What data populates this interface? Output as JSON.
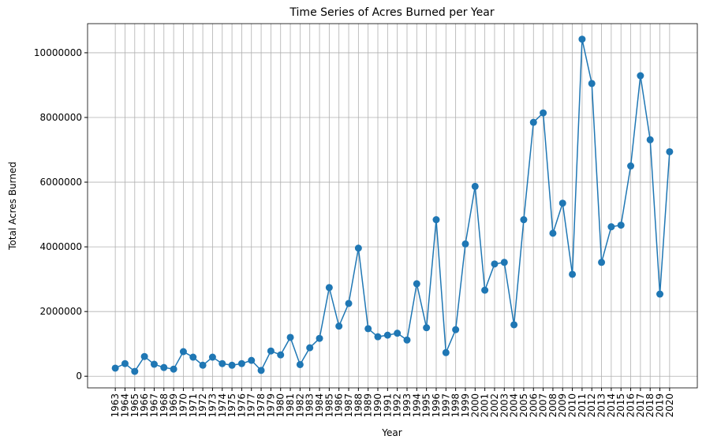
{
  "chart_data": {
    "type": "line",
    "title": "Time Series of Acres Burned per Year",
    "x_label": "Year",
    "y_label": "Total Acres Burned",
    "categories": [
      "1963",
      "1964",
      "1965",
      "1966",
      "1967",
      "1968",
      "1969",
      "1970",
      "1971",
      "1972",
      "1973",
      "1974",
      "1975",
      "1976",
      "1977",
      "1978",
      "1979",
      "1980",
      "1981",
      "1982",
      "1983",
      "1984",
      "1985",
      "1986",
      "1987",
      "1988",
      "1989",
      "1990",
      "1991",
      "1992",
      "1993",
      "1994",
      "1995",
      "1996",
      "1997",
      "1998",
      "1999",
      "2000",
      "2001",
      "2002",
      "2003",
      "2004",
      "2005",
      "2006",
      "2007",
      "2008",
      "2009",
      "2010",
      "2011",
      "2012",
      "2013",
      "2014",
      "2015",
      "2016",
      "2017",
      "2018",
      "2019",
      "2020"
    ],
    "series": [
      {
        "name": "Total Acres Burned",
        "color": "#1f77b4",
        "values": [
          250000,
          390000,
          150000,
          610000,
          370000,
          270000,
          220000,
          760000,
          590000,
          340000,
          590000,
          390000,
          340000,
          390000,
          490000,
          180000,
          780000,
          660000,
          1200000,
          360000,
          880000,
          1170000,
          2740000,
          1550000,
          2250000,
          3960000,
          1470000,
          1220000,
          1270000,
          1330000,
          1120000,
          2860000,
          1500000,
          4840000,
          730000,
          1440000,
          4090000,
          5870000,
          2660000,
          3470000,
          3520000,
          1590000,
          4840000,
          7850000,
          8140000,
          4420000,
          5350000,
          3150000,
          10420000,
          9050000,
          3520000,
          4620000,
          4670000,
          6500000,
          9290000,
          7310000,
          2540000,
          6940000
        ]
      }
    ],
    "ylim": [
      -360000,
      10900000
    ],
    "yticks": [
      0,
      2000000,
      4000000,
      6000000,
      8000000,
      10000000
    ],
    "grid": true,
    "marker": "circle"
  }
}
